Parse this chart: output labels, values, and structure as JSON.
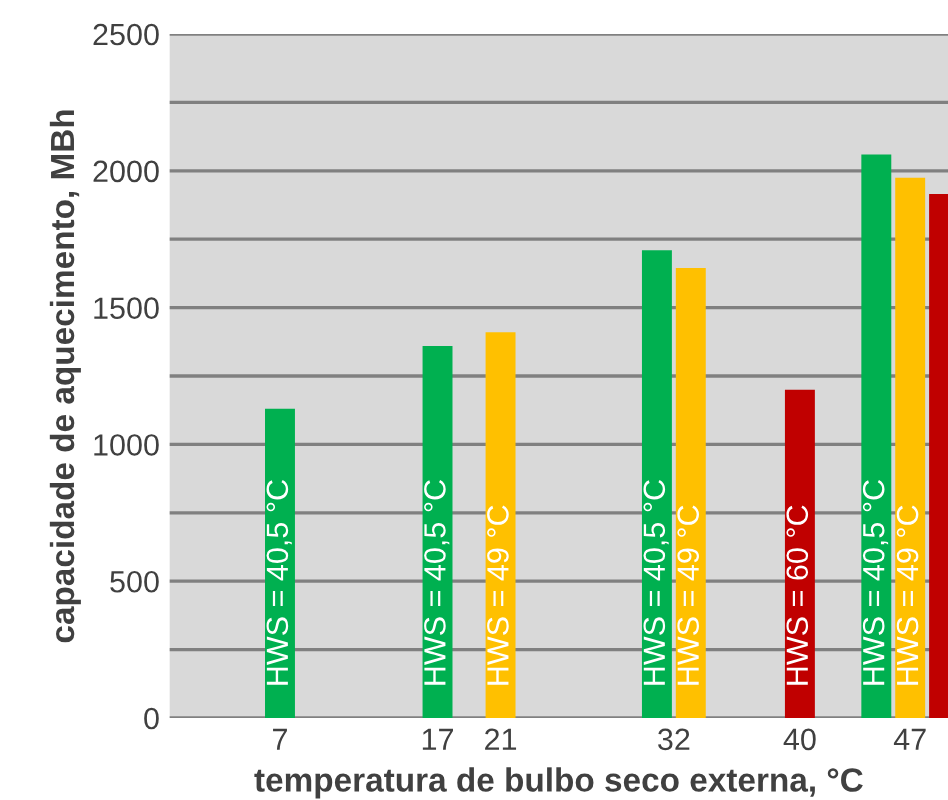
{
  "chart_data": {
    "type": "bar",
    "xlabel": "temperatura de bulbo seco externa, °C",
    "ylabel": "capacidade de aquecimento, MBh",
    "xlim": [
      0,
      49.4
    ],
    "xticks": [
      7,
      17,
      21,
      32,
      40,
      47
    ],
    "ylim": [
      0,
      2500
    ],
    "yticks": [
      0,
      {
        "value": 250,
        "label": null
      },
      500,
      {
        "value": 750,
        "label": null
      },
      1000,
      {
        "value": 1250,
        "label": null
      },
      1500,
      {
        "value": 1750,
        "label": null
      },
      2000,
      {
        "value": 2250,
        "label": null
      },
      2500
    ],
    "grid": "y",
    "legend": false,
    "series": [
      {
        "name": "HWS = 40,5 °C",
        "color": "#00b050",
        "x": [
          7,
          17,
          32,
          47
        ],
        "values": [
          1130,
          1360,
          1710,
          2060
        ]
      },
      {
        "name": "HWS = 49 °C",
        "color": "#ffc000",
        "x": [
          21,
          32,
          47
        ],
        "values": [
          1410,
          1645,
          1975
        ]
      },
      {
        "name": "HWS = 60 °C",
        "color": "#c00000",
        "x": [
          40,
          47
        ],
        "values": [
          1200,
          1915
        ]
      }
    ]
  }
}
